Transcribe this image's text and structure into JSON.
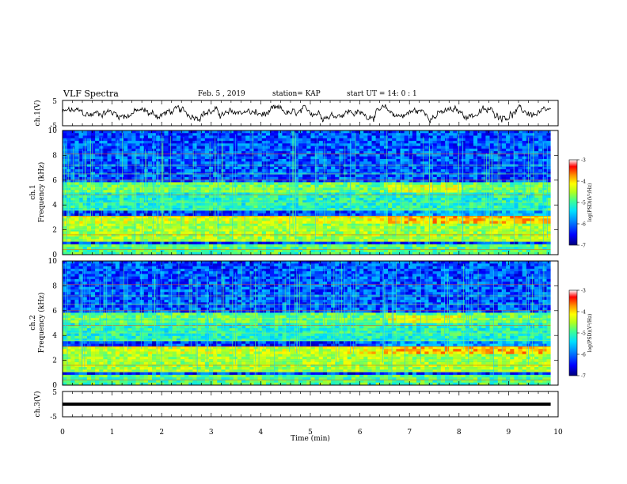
{
  "header": {
    "title": "VLF Spectra",
    "date": "Feb. 5 , 2019",
    "station": "station= KAP",
    "start": "start  UT =   14: 0  : 1"
  },
  "colors": {
    "spectrum_ramp": [
      "#00007a",
      "#0000ff",
      "#0088ff",
      "#00e0ff",
      "#40ff90",
      "#b0ff20",
      "#ffff00",
      "#ff9000",
      "#ff0000",
      "#ffffff"
    ],
    "trace": "#000000"
  },
  "chart_data": [
    {
      "type": "line",
      "name": "ch1-waveform",
      "ylabel": "ch.1(V)",
      "ylim": [
        -5,
        5
      ],
      "yticks": [
        "5",
        "-5"
      ],
      "xlim": [
        0,
        10
      ],
      "x_end": 9.85,
      "description_of_signal": "noisy broadband voltage roughly between -3 and 3 V"
    },
    {
      "type": "heatmap",
      "name": "ch1-spectrogram",
      "ylabel": "ch.1\nFrequency (kHz)",
      "ylabel_lines": [
        "ch.1",
        "Frequency  (kHz)"
      ],
      "ylim": [
        0,
        10
      ],
      "yticks": [
        "0",
        "2",
        "4",
        "6",
        "8",
        "10"
      ],
      "xlim": [
        0,
        10
      ],
      "x_end": 9.85,
      "colorbar": {
        "label": "log(PSD)(V²/Hz)",
        "range": [
          -7,
          -3
        ],
        "ticks": [
          "-3",
          "-4",
          "-5",
          "-6",
          "-7"
        ]
      },
      "bands_khz": [
        {
          "lo": 0.0,
          "hi": 0.9,
          "level": 0.45
        },
        {
          "lo": 1.0,
          "hi": 2.4,
          "level": 0.55
        },
        {
          "lo": 2.4,
          "hi": 3.2,
          "level": 0.6
        },
        {
          "lo": 3.6,
          "hi": 5.0,
          "level": 0.4
        },
        {
          "lo": 5.0,
          "hi": 5.8,
          "level": 0.48
        },
        {
          "lo": 5.8,
          "hi": 10.0,
          "level": 0.18
        }
      ]
    },
    {
      "type": "heatmap",
      "name": "ch2-spectrogram",
      "ylabel_lines": [
        "ch.2",
        "Frequency  (kHz)"
      ],
      "ylim": [
        0,
        10
      ],
      "yticks": [
        "0",
        "2",
        "4",
        "6",
        "8",
        "10"
      ],
      "xlim": [
        0,
        10
      ],
      "x_end": 9.85,
      "colorbar": {
        "label": "log(PSD)(V²/Hz)",
        "range": [
          -7,
          -3
        ],
        "ticks": [
          "-3",
          "-4",
          "-5",
          "-6",
          "-7"
        ]
      }
    },
    {
      "type": "line",
      "name": "ch3-waveform",
      "ylabel": "ch.3(V)",
      "ylim": [
        -5,
        5
      ],
      "yticks": [
        "5",
        "-5"
      ],
      "xlim": [
        0,
        10
      ],
      "x_end": 9.85,
      "constant_value": 0,
      "xlabel": "Time  (min)",
      "xticks": [
        "0",
        "1",
        "2",
        "3",
        "4",
        "5",
        "6",
        "7",
        "8",
        "9",
        "10"
      ]
    }
  ]
}
